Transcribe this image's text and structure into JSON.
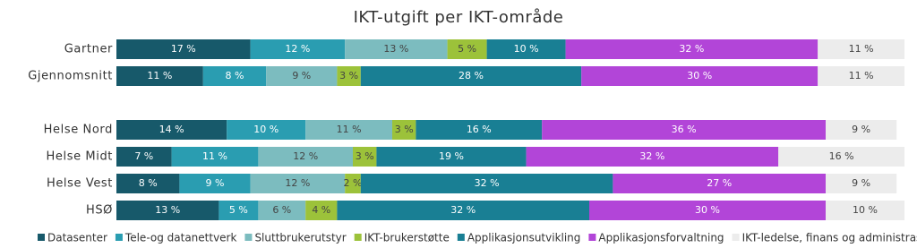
{
  "chart_data": {
    "type": "stacked-bar-horizontal",
    "title": "IKT-utgift per IKT-område",
    "categories": [
      "Gartner",
      "Gjennomsnitt",
      null,
      "Helse Nord",
      "Helse Midt",
      "Helse Vest",
      "HSØ"
    ],
    "xlim": [
      0,
      100
    ],
    "series": [
      {
        "name": "Datasenter",
        "color": "#17596a",
        "values": [
          17,
          11,
          null,
          14,
          7,
          8,
          13
        ],
        "value_labels": [
          "17 %",
          "11 %",
          null,
          "14 %",
          "7 %",
          "8 %",
          "13 %"
        ]
      },
      {
        "name": "Tele-og datanettverk",
        "color": "#2a9db1",
        "values": [
          12,
          8,
          null,
          10,
          11,
          9,
          5
        ],
        "value_labels": [
          "12 %",
          "8 %",
          null,
          "10 %",
          "11 %",
          "9 %",
          "5 %"
        ]
      },
      {
        "name": "Sluttbrukerutstyr",
        "color": "#7cbcbf",
        "values": [
          13,
          9,
          null,
          11,
          12,
          12,
          6
        ],
        "value_labels": [
          "13 %",
          "9 %",
          null,
          "11 %",
          "12 %",
          "12 %",
          "6 %"
        ]
      },
      {
        "name": "IKT-brukerstøtte",
        "color": "#9cc23a",
        "values": [
          5,
          3,
          null,
          3,
          3,
          2,
          4
        ],
        "value_labels": [
          "5 %",
          "3 %",
          null,
          "3 %",
          "3 %",
          "2 %",
          "4 %"
        ]
      },
      {
        "name": "Applikasjonsutvikling",
        "color": "#197f94",
        "values": [
          10,
          28,
          null,
          16,
          19,
          32,
          32
        ],
        "value_labels": [
          "10 %",
          "28 %",
          null,
          "16 %",
          "19 %",
          "32 %",
          "32 %"
        ]
      },
      {
        "name": "Applikasjonsforvaltning",
        "color": "#b245d8",
        "values": [
          32,
          30,
          null,
          36,
          32,
          27,
          30
        ],
        "value_labels": [
          "32 %",
          "30 %",
          null,
          "36 %",
          "32 %",
          "27 %",
          "30 %"
        ]
      },
      {
        "name": "IKT-ledelse, finans og administrasjon",
        "color": "#ececec",
        "values": [
          11,
          11,
          null,
          9,
          16,
          9,
          10
        ],
        "value_labels": [
          "11 %",
          "11 %",
          null,
          "9 %",
          "16 %",
          "9 %",
          "10 %"
        ]
      }
    ]
  }
}
